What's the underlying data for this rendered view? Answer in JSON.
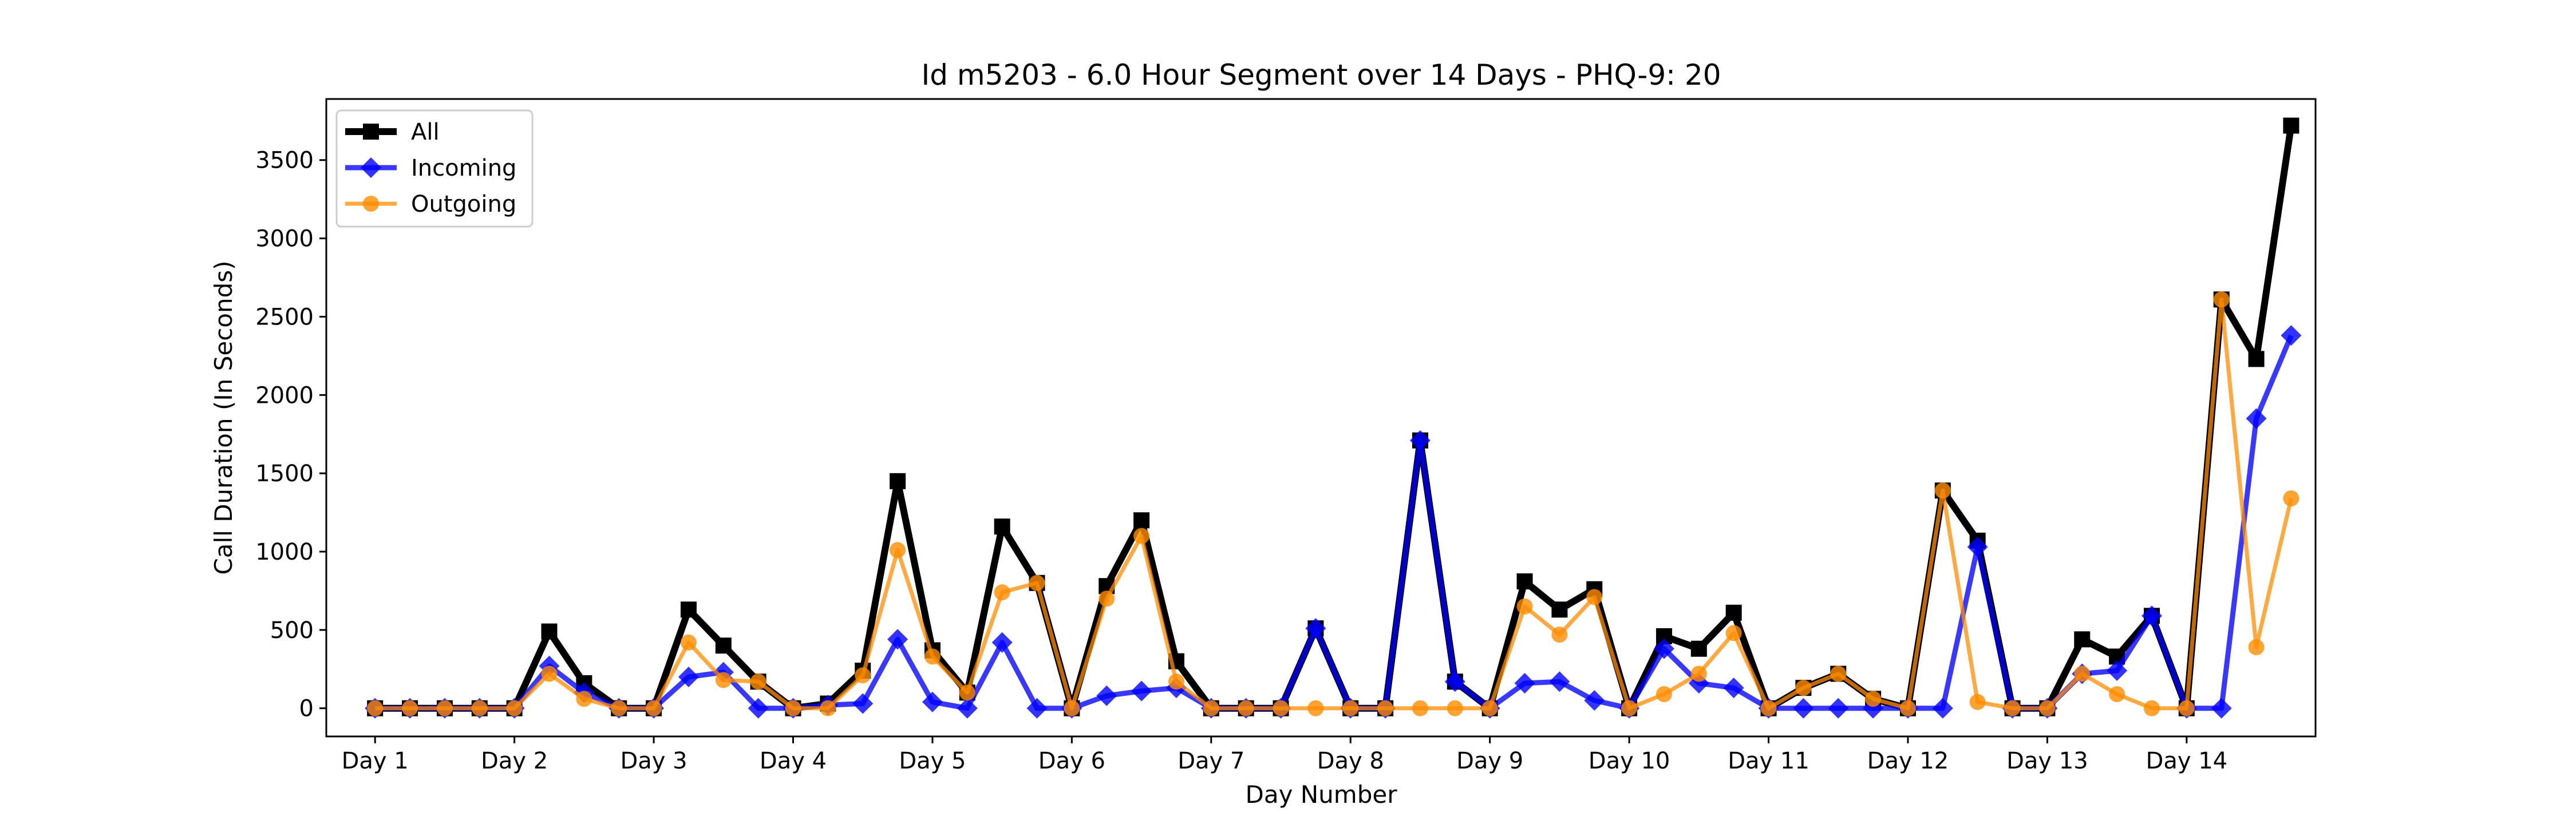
{
  "chart_data": {
    "type": "line",
    "title": "Id m5203 - 6.0 Hour Segment over 14 Days - PHQ-9: 20",
    "xlabel": "Day Number",
    "ylabel": "Call Duration (In Seconds)",
    "x_tick_labels": [
      "Day 1",
      "Day 2",
      "Day 3",
      "Day 4",
      "Day 5",
      "Day 6",
      "Day 7",
      "Day 8",
      "Day 9",
      "Day 10",
      "Day 11",
      "Day 12",
      "Day 13",
      "Day 14"
    ],
    "y_ticks": [
      0,
      500,
      1000,
      1500,
      2000,
      2500,
      3000,
      3500
    ],
    "ylim": [
      -180,
      3890
    ],
    "xlim": [
      -1.4,
      55.7
    ],
    "grid": false,
    "legend_position": "upper-left",
    "x": [
      0,
      1,
      2,
      3,
      4,
      5,
      6,
      7,
      8,
      9,
      10,
      11,
      12,
      13,
      14,
      15,
      16,
      17,
      18,
      19,
      20,
      21,
      22,
      23,
      24,
      25,
      26,
      27,
      28,
      29,
      30,
      31,
      32,
      33,
      34,
      35,
      36,
      37,
      38,
      39,
      40,
      41,
      42,
      43,
      44,
      45,
      46,
      47,
      48,
      49,
      50,
      51,
      52,
      53,
      54,
      55
    ],
    "series": [
      {
        "name": "All",
        "color": "#000000",
        "marker": "square",
        "values": [
          0,
          0,
          0,
          0,
          0,
          490,
          160,
          0,
          0,
          630,
          400,
          170,
          0,
          30,
          240,
          1450,
          370,
          100,
          1160,
          800,
          0,
          780,
          1200,
          300,
          0,
          0,
          0,
          510,
          0,
          0,
          1710,
          170,
          0,
          810,
          630,
          760,
          0,
          460,
          380,
          610,
          0,
          130,
          220,
          60,
          0,
          1390,
          1070,
          0,
          0,
          440,
          330,
          590,
          0,
          2610,
          2230,
          3720
        ]
      },
      {
        "name": "Incoming",
        "color": "#0000ff",
        "marker": "diamond",
        "values": [
          0,
          0,
          0,
          0,
          0,
          270,
          100,
          0,
          0,
          200,
          230,
          0,
          0,
          20,
          30,
          440,
          40,
          0,
          420,
          0,
          0,
          80,
          110,
          130,
          0,
          0,
          0,
          510,
          0,
          0,
          1710,
          170,
          0,
          160,
          170,
          50,
          0,
          380,
          160,
          130,
          0,
          0,
          0,
          0,
          0,
          0,
          1030,
          0,
          0,
          220,
          240,
          590,
          0,
          0,
          1850,
          2380
        ]
      },
      {
        "name": "Outgoing",
        "color": "#ff8c00",
        "marker": "circle",
        "values": [
          0,
          0,
          0,
          0,
          0,
          220,
          60,
          0,
          0,
          420,
          180,
          170,
          0,
          0,
          210,
          1010,
          330,
          100,
          740,
          800,
          0,
          700,
          1100,
          170,
          0,
          0,
          0,
          0,
          0,
          0,
          0,
          0,
          0,
          650,
          470,
          710,
          0,
          90,
          220,
          480,
          0,
          130,
          220,
          60,
          0,
          1390,
          40,
          0,
          0,
          220,
          90,
          0,
          0,
          2610,
          390,
          1340
        ]
      }
    ]
  }
}
